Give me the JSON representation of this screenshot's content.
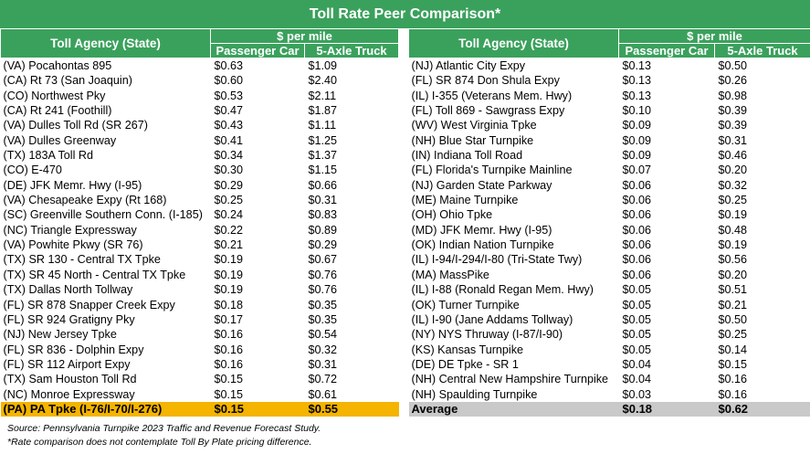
{
  "title": "Toll Rate Peer Comparison*",
  "headers": {
    "agency": "Toll Agency (State)",
    "per_mile": "$ per mile",
    "car": "Passenger Car",
    "truck": "5-Axle Truck"
  },
  "left_rows": [
    {
      "agency": "(VA) Pocahontas 895",
      "car": "$0.63",
      "truck": "$1.09"
    },
    {
      "agency": "(CA) Rt 73 (San Joaquin)",
      "car": "$0.60",
      "truck": "$2.40"
    },
    {
      "agency": "(CO) Northwest Pky",
      "car": "$0.53",
      "truck": "$2.11"
    },
    {
      "agency": "(CA) Rt 241 (Foothill)",
      "car": "$0.47",
      "truck": "$1.87"
    },
    {
      "agency": "(VA) Dulles Toll Rd (SR 267)",
      "car": "$0.43",
      "truck": "$1.11"
    },
    {
      "agency": "(VA) Dulles Greenway",
      "car": "$0.41",
      "truck": "$1.25"
    },
    {
      "agency": "(TX) 183A Toll Rd",
      "car": "$0.34",
      "truck": "$1.37"
    },
    {
      "agency": "(CO) E-470",
      "car": "$0.30",
      "truck": "$1.15"
    },
    {
      "agency": "(DE) JFK Memr. Hwy (I-95)",
      "car": "$0.29",
      "truck": "$0.66"
    },
    {
      "agency": "(VA) Chesapeake Expy (Rt 168)",
      "car": "$0.25",
      "truck": "$0.31"
    },
    {
      "agency": "(SC) Greenville Southern Conn. (I-185)",
      "car": "$0.24",
      "truck": "$0.83"
    },
    {
      "agency": "(NC) Triangle Expressway",
      "car": "$0.22",
      "truck": "$0.89"
    },
    {
      "agency": "(VA) Powhite Pkwy (SR 76)",
      "car": "$0.21",
      "truck": "$0.29"
    },
    {
      "agency": "(TX) SR 130 - Central TX Tpke",
      "car": "$0.19",
      "truck": "$0.67"
    },
    {
      "agency": "(TX) SR 45 North - Central TX Tpke",
      "car": "$0.19",
      "truck": "$0.76"
    },
    {
      "agency": "(TX) Dallas North Tollway",
      "car": "$0.19",
      "truck": "$0.76"
    },
    {
      "agency": "(FL) SR 878 Snapper Creek Expy",
      "car": "$0.18",
      "truck": "$0.35"
    },
    {
      "agency": "(FL) SR 924 Gratigny Pky",
      "car": "$0.17",
      "truck": "$0.35"
    },
    {
      "agency": "(NJ) New Jersey Tpke",
      "car": "$0.16",
      "truck": "$0.54"
    },
    {
      "agency": "(FL) SR 836 - Dolphin Expy",
      "car": "$0.16",
      "truck": "$0.32"
    },
    {
      "agency": "(FL) SR 112 Airport Expy",
      "car": "$0.16",
      "truck": "$0.31"
    },
    {
      "agency": "(TX) Sam Houston Toll Rd",
      "car": "$0.15",
      "truck": "$0.72"
    },
    {
      "agency": "(NC) Monroe Expressway",
      "car": "$0.15",
      "truck": "$0.61"
    }
  ],
  "pa_row": {
    "agency": "(PA) PA Tpke (I-76/I-70/I-276)",
    "car": "$0.15",
    "truck": "$0.55"
  },
  "right_rows": [
    {
      "agency": "(NJ) Atlantic City Expy",
      "car": "$0.13",
      "truck": "$0.50"
    },
    {
      "agency": "(FL) SR 874 Don Shula Expy",
      "car": "$0.13",
      "truck": "$0.26"
    },
    {
      "agency": "(IL) I-355 (Veterans Mem. Hwy)",
      "car": "$0.13",
      "truck": "$0.98"
    },
    {
      "agency": "(FL) Toll 869 - Sawgrass Expy",
      "car": "$0.10",
      "truck": "$0.39"
    },
    {
      "agency": "(WV) West Virginia Tpke",
      "car": "$0.09",
      "truck": "$0.39"
    },
    {
      "agency": "(NH) Blue Star Turnpike",
      "car": "$0.09",
      "truck": "$0.31"
    },
    {
      "agency": "(IN) Indiana Toll Road",
      "car": "$0.09",
      "truck": "$0.46"
    },
    {
      "agency": "(FL) Florida's Turnpike Mainline",
      "car": "$0.07",
      "truck": "$0.20"
    },
    {
      "agency": "(NJ) Garden State Parkway",
      "car": "$0.06",
      "truck": "$0.32"
    },
    {
      "agency": "(ME) Maine Turnpike",
      "car": "$0.06",
      "truck": "$0.25"
    },
    {
      "agency": "(OH) Ohio Tpke",
      "car": "$0.06",
      "truck": "$0.19"
    },
    {
      "agency": "(MD) JFK Memr. Hwy (I-95)",
      "car": "$0.06",
      "truck": "$0.48"
    },
    {
      "agency": "(OK) Indian Nation Turnpike",
      "car": "$0.06",
      "truck": "$0.19"
    },
    {
      "agency": "(IL) I-94/I-294/I-80 (Tri-State Twy)",
      "car": "$0.06",
      "truck": "$0.56"
    },
    {
      "agency": "(MA) MassPike",
      "car": "$0.06",
      "truck": "$0.20"
    },
    {
      "agency": "(IL) I-88 (Ronald Regan Mem. Hwy)",
      "car": "$0.05",
      "truck": "$0.51"
    },
    {
      "agency": "(OK) Turner Turnpike",
      "car": "$0.05",
      "truck": "$0.21"
    },
    {
      "agency": "(IL) I-90 (Jane Addams Tollway)",
      "car": "$0.05",
      "truck": "$0.50"
    },
    {
      "agency": "(NY) NYS Thruway (I-87/I-90)",
      "car": "$0.05",
      "truck": "$0.25"
    },
    {
      "agency": "(KS) Kansas Turnpike",
      "car": "$0.05",
      "truck": "$0.14"
    },
    {
      "agency": "(DE) DE Tpke - SR 1",
      "car": "$0.04",
      "truck": "$0.15"
    },
    {
      "agency": "(NH) Central New Hampshire Turnpike",
      "car": "$0.04",
      "truck": "$0.16"
    },
    {
      "agency": "(NH) Spaulding Turnpike",
      "car": "$0.03",
      "truck": "$0.16"
    }
  ],
  "average_row": {
    "agency": "Average",
    "car": "$0.18",
    "truck": "$0.62"
  },
  "footnotes": {
    "source": "Source: Pennsylvania Turnpike 2023 Traffic and Revenue Forecast Study.",
    "note": "*Rate comparison does not contemplate Toll By Plate pricing difference."
  }
}
